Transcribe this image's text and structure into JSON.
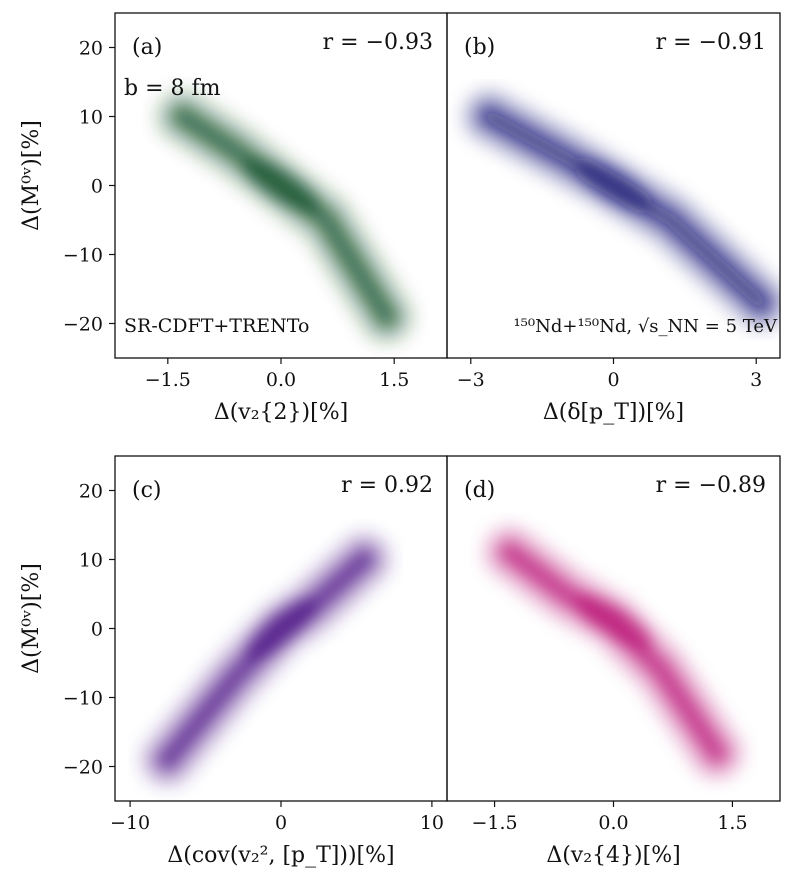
{
  "figure": {
    "energy_label": "¹⁵⁰Nd+¹⁵⁰Nd, √s_NN = 5 TeV",
    "model_label": "SR-CDFT+TRENTo",
    "impact_label": "b = 8 fm"
  },
  "chart_data": [
    {
      "type": "scatter",
      "render": "density",
      "panel": "(a)",
      "r_label": "r = −0.93",
      "annotation": "b = 8 fm",
      "annotation2": "SR-CDFT+TRENTo",
      "xlabel": "Δ(v₂{2})[%]",
      "ylabel": "Δ(M⁰ᵛ)[%]",
      "xlim": [
        -2.2,
        2.2
      ],
      "ylim": [
        -25,
        25
      ],
      "xticks": [
        -1.5,
        0.0,
        1.5
      ],
      "xtick_labels": [
        "−1.5",
        "0.0",
        "1.5"
      ],
      "yticks": [
        -20,
        -10,
        0,
        10,
        20
      ],
      "ytick_labels": [
        "−20",
        "−10",
        "0",
        "10",
        "20"
      ],
      "color": "#00441b",
      "points": [
        [
          -1.3,
          10
        ],
        [
          -0.6,
          5
        ],
        [
          0.0,
          0
        ],
        [
          0.6,
          -5
        ],
        [
          1.4,
          -19
        ]
      ],
      "r": -0.93
    },
    {
      "type": "scatter",
      "render": "density",
      "panel": "(b)",
      "r_label": "r = −0.91",
      "annotation": "¹⁵⁰Nd+¹⁵⁰Nd, √s_NN = 5 TeV",
      "xlabel": "Δ(δ[p_T])[%]",
      "ylabel": "",
      "xlim": [
        -3.5,
        3.5
      ],
      "ylim": [
        -25,
        25
      ],
      "xticks": [
        -3,
        0,
        3
      ],
      "xtick_labels": [
        "−3",
        "0",
        "3"
      ],
      "yticks": [],
      "color": "#0a0a6e",
      "points": [
        [
          -2.6,
          10
        ],
        [
          -1.0,
          4
        ],
        [
          0.0,
          0
        ],
        [
          1.2,
          -5
        ],
        [
          3.1,
          -17
        ]
      ],
      "r": -0.91
    },
    {
      "type": "scatter",
      "render": "density",
      "panel": "(c)",
      "r_label": "r = 0.92",
      "xlabel": "Δ(cov(v₂², [p_T]))[%]",
      "ylabel": "Δ(M⁰ᵛ)[%]",
      "xlim": [
        -11,
        11
      ],
      "ylim": [
        -25,
        25
      ],
      "xticks": [
        -10,
        0,
        10
      ],
      "xtick_labels": [
        "−10",
        "0",
        "10"
      ],
      "yticks": [
        -20,
        -10,
        0,
        10,
        20
      ],
      "ytick_labels": [
        "−20",
        "−10",
        "0",
        "10",
        "20"
      ],
      "color": "#3f007d",
      "points": [
        [
          -7.5,
          -19
        ],
        [
          -3.0,
          -7
        ],
        [
          0.0,
          0
        ],
        [
          2.0,
          3
        ],
        [
          5.5,
          10
        ]
      ],
      "r": 0.92
    },
    {
      "type": "scatter",
      "render": "density",
      "panel": "(d)",
      "r_label": "r = −0.89",
      "xlabel": "Δ(v₂{4})[%]",
      "ylabel": "",
      "xlim": [
        -2.1,
        2.1
      ],
      "ylim": [
        -25,
        25
      ],
      "xticks": [
        -1.5,
        0.0,
        1.5
      ],
      "xtick_labels": [
        "−1.5",
        "0.0",
        "1.5"
      ],
      "yticks": [],
      "color": "#b5006b",
      "points": [
        [
          -1.3,
          11
        ],
        [
          -0.6,
          5
        ],
        [
          0.0,
          1
        ],
        [
          0.6,
          -6
        ],
        [
          1.3,
          -18
        ]
      ],
      "r": -0.89
    }
  ]
}
